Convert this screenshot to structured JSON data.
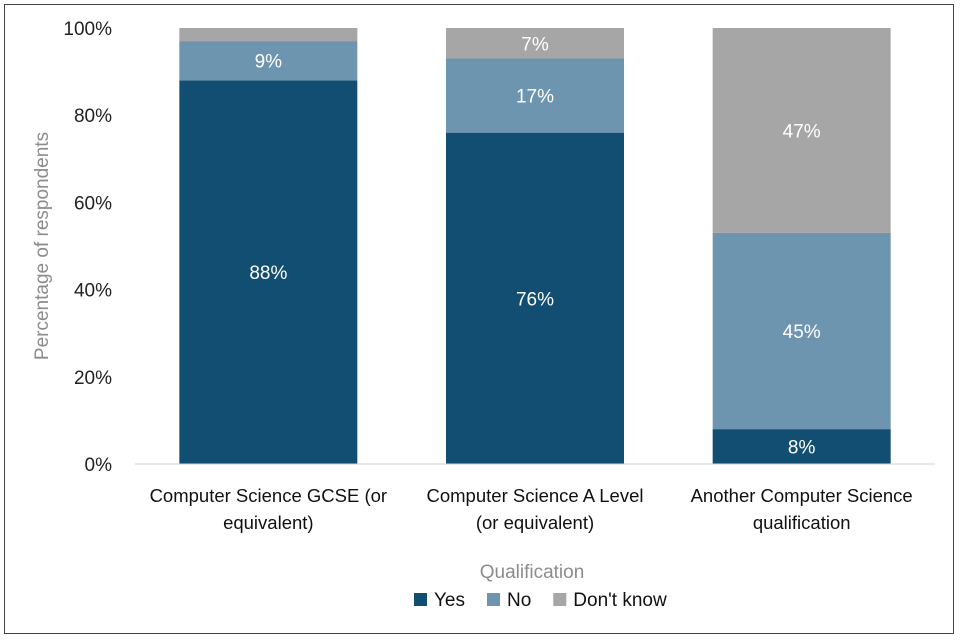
{
  "chart_data": {
    "type": "bar",
    "stacked": true,
    "categories": [
      [
        "Computer Science GCSE (or",
        "equivalent)"
      ],
      [
        "Computer Science A Level",
        "(or equivalent)"
      ],
      [
        "Another Computer Science",
        "qualification"
      ]
    ],
    "series": [
      {
        "name": "Yes",
        "color": "#124e72",
        "values": [
          88,
          76,
          8
        ],
        "labels": [
          "88%",
          "76%",
          "8%"
        ]
      },
      {
        "name": "No",
        "color": "#6e95b0",
        "values": [
          9,
          17,
          45
        ],
        "labels": [
          "9%",
          "17%",
          "45%"
        ]
      },
      {
        "name": "Don't know",
        "color": "#a6a6a6",
        "values": [
          3,
          7,
          47
        ],
        "labels": [
          "",
          "7%",
          "47%"
        ]
      }
    ],
    "xlabel": "Qualification",
    "ylabel": "Percentage of respondents",
    "ylim": [
      0,
      100
    ],
    "yticks": [
      "0%",
      "20%",
      "40%",
      "60%",
      "80%",
      "100%"
    ],
    "grid": false,
    "legend": "bottom"
  }
}
